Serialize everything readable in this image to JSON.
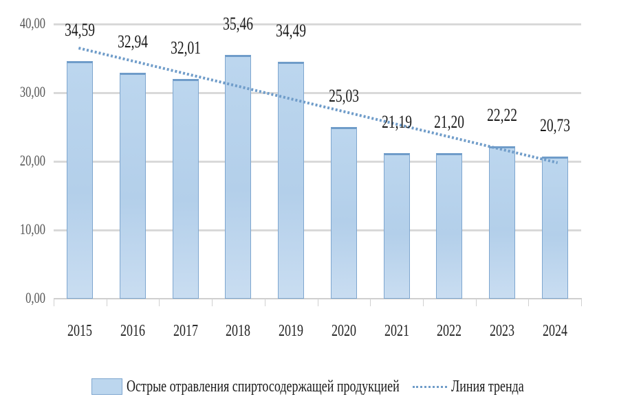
{
  "chart_data": {
    "type": "bar",
    "title": "",
    "xlabel": "",
    "ylabel": "",
    "ylim": [
      0,
      40
    ],
    "yticks": [
      "0,00",
      "10,00",
      "20,00",
      "30,00",
      "40,00"
    ],
    "grid": true,
    "legend_position": "bottom",
    "categories": [
      "2015",
      "2016",
      "2017",
      "2018",
      "2019",
      "2020",
      "2021",
      "2022",
      "2023",
      "2024"
    ],
    "series": [
      {
        "name": "Острые отравления спиртосодержащей продукцией",
        "type": "bar",
        "values": [
          34.59,
          32.94,
          32.01,
          35.46,
          34.49,
          25.03,
          21.19,
          21.2,
          22.22,
          20.73
        ],
        "labels": [
          "34,59",
          "32,94",
          "32,01",
          "35,46",
          "34,49",
          "25,03",
          "21,19",
          "21,20",
          "22,22",
          "20,73"
        ],
        "color": "#bcd6ee",
        "border_color": "#7ea6cf"
      },
      {
        "name": "Линия тренда",
        "type": "line",
        "style": "dotted",
        "start_value": 36.5,
        "end_value": 19.8,
        "color": "#6f9cc9"
      }
    ]
  },
  "legend": {
    "bar_label": "Острые отравления спиртосодержащей продукцией",
    "trend_label": "Линия тренда"
  }
}
